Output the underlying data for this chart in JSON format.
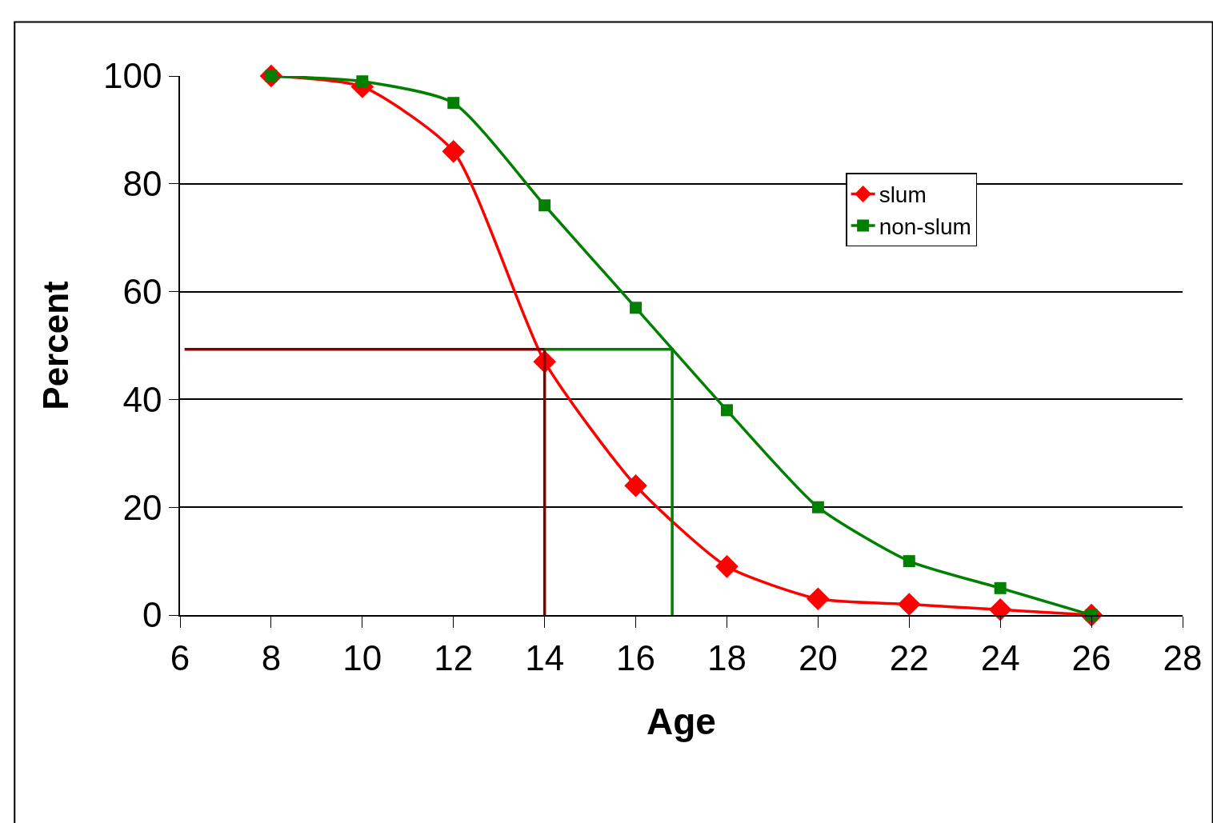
{
  "chart_data": {
    "type": "line",
    "xlabel": "Age",
    "ylabel": "Percent",
    "xlim": [
      6,
      28
    ],
    "xticks": [
      6,
      8,
      10,
      12,
      14,
      16,
      18,
      20,
      22,
      24,
      26,
      28
    ],
    "ylim": [
      0,
      100
    ],
    "yticks": [
      0,
      20,
      40,
      60,
      80,
      100
    ],
    "grid": "y",
    "legend": "top right",
    "x": [
      8,
      10,
      12,
      14,
      16,
      18,
      20,
      22,
      24,
      26
    ],
    "series": [
      {
        "name": "slum",
        "color": "#ff0000",
        "marker": "diamond",
        "values": [
          100,
          98,
          86,
          47,
          24,
          9,
          3,
          2,
          1,
          0
        ]
      },
      {
        "name": "non-slum",
        "color": "#008000",
        "marker": "square",
        "values": [
          100,
          99,
          95,
          76,
          57,
          38,
          20,
          10,
          5,
          0
        ]
      },
      {
        "color": "#800000",
        "marker": "none",
        "x": [
          6.1,
          14,
          14
        ],
        "values": [
          49.3,
          49.3,
          0
        ]
      },
      {
        "color": "#008000",
        "marker": "none",
        "x": [
          14,
          16.8,
          16.8
        ],
        "values": [
          49.3,
          49.3,
          0
        ]
      }
    ]
  }
}
